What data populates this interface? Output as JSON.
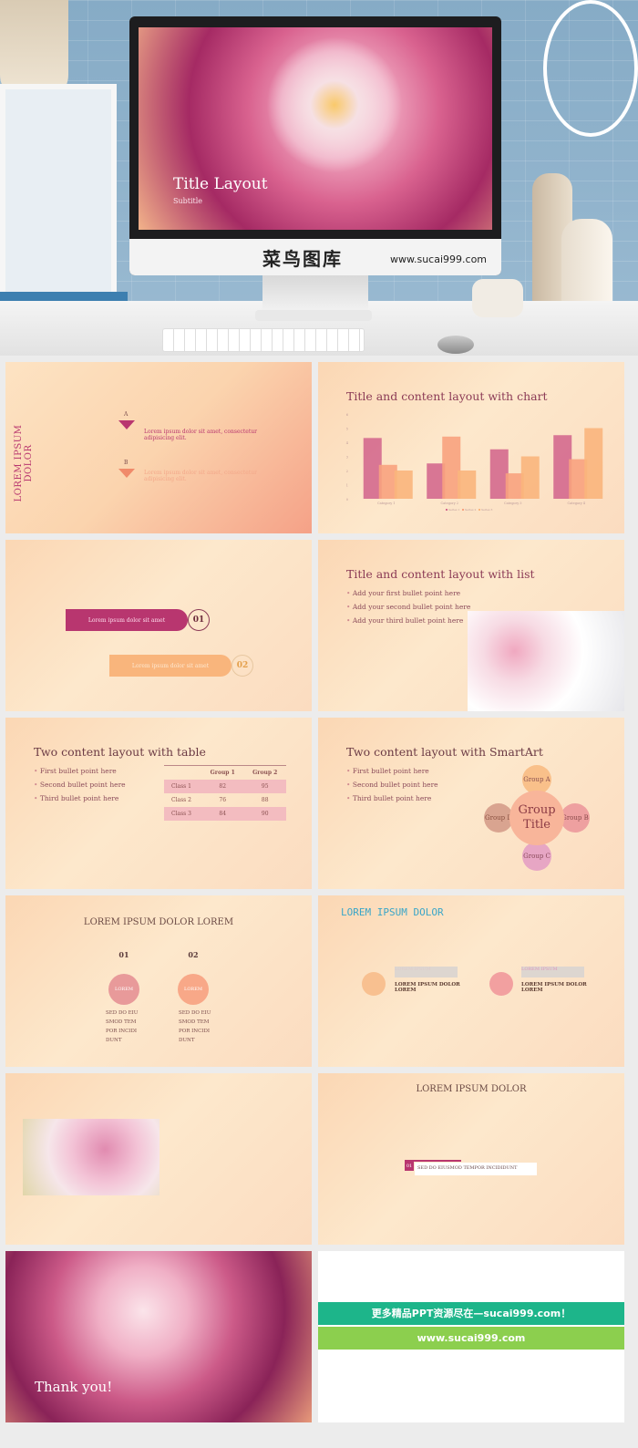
{
  "hero": {
    "screen_title": "Title Layout",
    "screen_subtitle": "Subtitle",
    "brand_cn": "菜鸟图库",
    "brand_url": "www.sucai999.com"
  },
  "slide2": {
    "vertical_title": "LOREM IPSUM DOLOR",
    "items": [
      {
        "letter": "A",
        "text": "Lorem ipsum dolor sit amet, consectetur adipisicing elit."
      },
      {
        "letter": "B",
        "text": "Lorem ipsum dolor sit amet, consectetur adipisicing elit."
      }
    ]
  },
  "slide3": {
    "title": "Title and content layout with chart"
  },
  "chart_data": {
    "type": "bar",
    "categories": [
      "Category 1",
      "Category 2",
      "Category 3",
      "Category 4"
    ],
    "series": [
      {
        "name": "Series 1",
        "values": [
          4.3,
          2.5,
          3.5,
          4.5
        ],
        "color": "#d4698e"
      },
      {
        "name": "Series 2",
        "values": [
          2.4,
          4.4,
          1.8,
          2.8
        ],
        "color": "#f8a27e"
      },
      {
        "name": "Series 3",
        "values": [
          2,
          2,
          3,
          5
        ],
        "color": "#f9b57c"
      }
    ],
    "ylim": [
      0,
      6
    ],
    "yticks": [
      0,
      1,
      2,
      3,
      4,
      5,
      6
    ],
    "legend": "bottom",
    "grid": false
  },
  "slide4": {
    "items": [
      {
        "text": "Lorem ipsum dolor sit amet",
        "num": "01"
      },
      {
        "text": "Lorem ipsum dolor sit amet",
        "num": "02"
      }
    ]
  },
  "slide5": {
    "title": "Title and content layout with list",
    "bullets": [
      "Add your first bullet point here",
      "Add your second bullet point here",
      "Add your third bullet point here"
    ]
  },
  "slide6": {
    "title": "Two content layout with table",
    "bullets": [
      "First bullet point here",
      "Second bullet point here",
      "Third bullet point here"
    ],
    "table": {
      "headers": [
        "",
        "Group 1",
        "Group 2"
      ],
      "rows": [
        [
          "Class 1",
          "82",
          "95"
        ],
        [
          "Class 2",
          "76",
          "88"
        ],
        [
          "Class 3",
          "84",
          "90"
        ]
      ]
    }
  },
  "slide7": {
    "title": "Two content layout with SmartArt",
    "bullets": [
      "First bullet point here",
      "Second bullet point here",
      "Third bullet point here"
    ],
    "center": "Group Title",
    "groups": [
      "Group A",
      "Group B",
      "Group C",
      "Group D"
    ]
  },
  "slide8": {
    "title": "LOREM IPSUM DOLOR LOREM",
    "cols": [
      {
        "num": "01",
        "circle": "LOREM",
        "lines": [
          "SED DO EIU",
          "SMOD TEM",
          "POR INCIDI",
          "DUNT"
        ]
      },
      {
        "num": "02",
        "circle": "LOREM",
        "lines": [
          "SED DO EIU",
          "SMOD TEM",
          "POR INCIDI",
          "DUNT"
        ]
      }
    ]
  },
  "slide9": {
    "title": "LOREM IPSUM DOLOR",
    "items": [
      {
        "tag": "LOREM IPSUM",
        "text": "LOREM IPSUM DOLOR LOREM"
      },
      {
        "tag": "LOREM IPSUM",
        "text": "LOREM IPSUM DOLOR LOREM"
      }
    ]
  },
  "slide11": {
    "title": "LOREM IPSUM DOLOR",
    "num": "01",
    "text": "SED DO EIUSMOD TEMPOR INCIDIDUNT"
  },
  "slide12": {
    "text": "Thank you!"
  },
  "promo": {
    "line1": "更多精品PPT资源尽在—sucai999.com！",
    "line2": "www.sucai999.com"
  },
  "colors": {
    "accent": "#b8366f",
    "orange": "#f9b57c",
    "green": "#1db58a",
    "lime": "#8ccf4e"
  }
}
